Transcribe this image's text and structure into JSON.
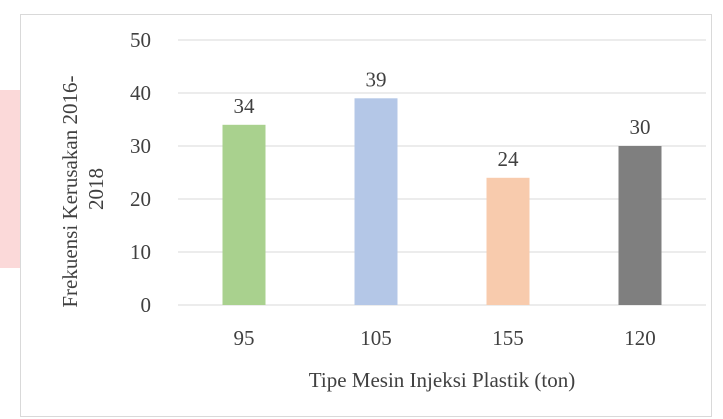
{
  "chart_data": {
    "type": "bar",
    "categories": [
      "95",
      "105",
      "155",
      "120"
    ],
    "values": [
      34,
      39,
      24,
      30
    ],
    "data_labels": [
      "34",
      "39",
      "24",
      "30"
    ],
    "colors": [
      "#a9d18e",
      "#b4c7e7",
      "#f8cbad",
      "#7f7f7f"
    ],
    "ylim": [
      0,
      50
    ],
    "yticks": [
      "0",
      "10",
      "20",
      "30",
      "40",
      "50"
    ],
    "xlabel": "Tipe Mesin Injeksi Plastik (ton)",
    "ylabel_lines": [
      "Frekuensi Kerusakan 2016-",
      "2018"
    ],
    "grid": true,
    "legend": "none"
  },
  "colors": {
    "gridline": "#d9d9d9",
    "text": "#404040",
    "frame": "#d9d9d9",
    "accent_strip": "#fbd9d9"
  }
}
